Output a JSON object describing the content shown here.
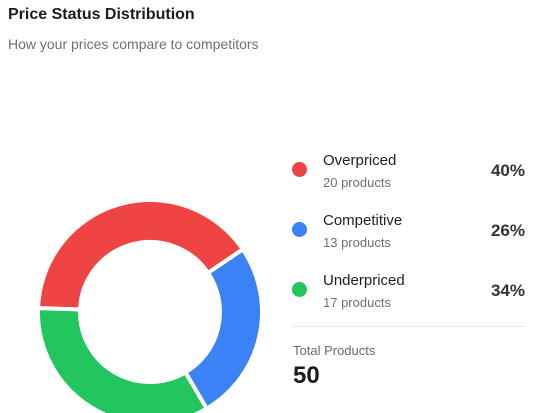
{
  "header": {
    "title": "Price Status Distribution",
    "subtitle": "How your prices compare to competitors"
  },
  "chart_data": {
    "type": "pie",
    "style": "donut",
    "title": "Price Status Distribution",
    "categories": [
      "Overpriced",
      "Competitive",
      "Underpriced"
    ],
    "values": [
      20,
      13,
      17
    ],
    "percentages": [
      "40%",
      "26%",
      "34%"
    ],
    "counts_text": [
      "20 products",
      "13 products",
      "17 products"
    ],
    "colors": [
      "#ef4444",
      "#3b82f6",
      "#22c55e"
    ],
    "legend_position": "right"
  },
  "summary": {
    "total_label": "Total Products",
    "total_value": "50"
  }
}
